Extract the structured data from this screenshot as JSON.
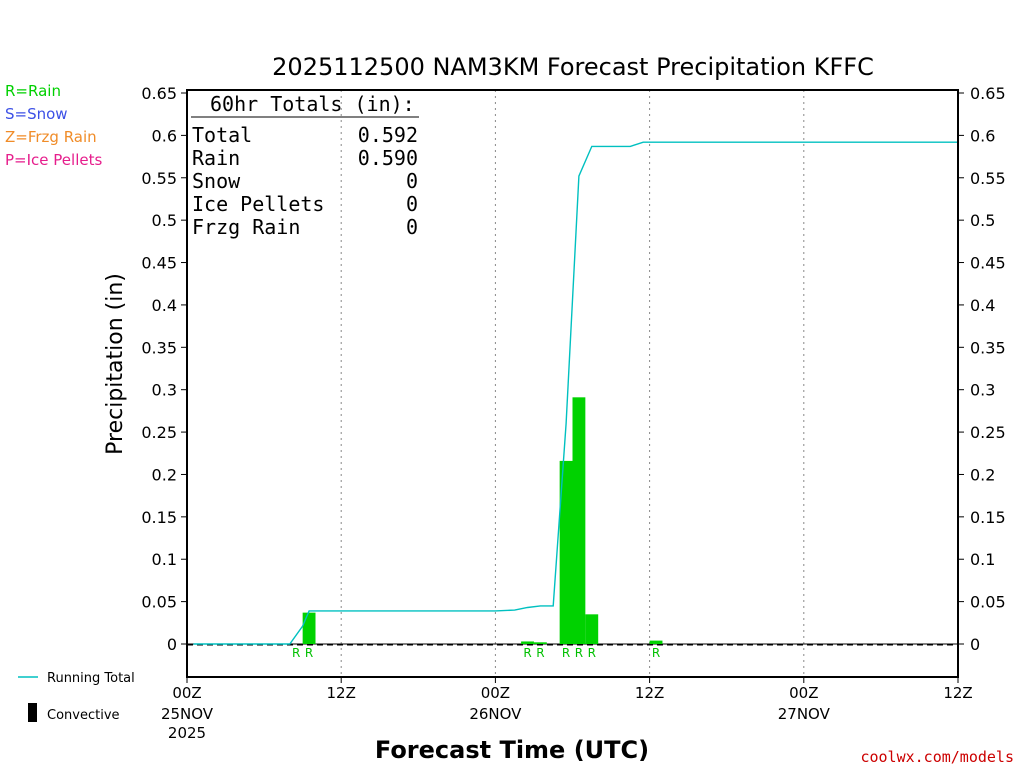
{
  "chart_data": {
    "type": "bar",
    "title": "2025112500 NAM3KM Forecast Precipitation KFFC",
    "ylabel": "Precipitation (in)",
    "xlabel": "Forecast Time (UTC)",
    "ylim": [
      -0.04,
      0.65
    ],
    "yticks": [
      "0.65",
      "0.6",
      "0.55",
      "0.5",
      "0.45",
      "0.4",
      "0.35",
      "0.3",
      "0.25",
      "0.2",
      "0.15",
      "0.1",
      "0.05",
      "0"
    ],
    "xlim_hours": [
      0,
      60
    ],
    "xticks": [
      {
        "hour": 0,
        "label": "00Z",
        "date": "25NOV",
        "year": "2025"
      },
      {
        "hour": 12,
        "label": "12Z",
        "date": "",
        "year": ""
      },
      {
        "hour": 24,
        "label": "00Z",
        "date": "26NOV",
        "year": ""
      },
      {
        "hour": 36,
        "label": "12Z",
        "date": "",
        "year": ""
      },
      {
        "hour": 48,
        "label": "00Z",
        "date": "27NOV",
        "year": ""
      },
      {
        "hour": 60,
        "label": "12Z",
        "date": "",
        "year": ""
      }
    ],
    "grid": "vertical dotted",
    "hourly_precip": [
      {
        "hour": 8.5,
        "value": 0.0,
        "type": "R"
      },
      {
        "hour": 9.5,
        "value": 0.037,
        "type": "R"
      },
      {
        "hour": 26.5,
        "value": 0.003,
        "type": "R"
      },
      {
        "hour": 27.5,
        "value": 0.002,
        "type": "R"
      },
      {
        "hour": 29.5,
        "value": 0.216,
        "type": "R"
      },
      {
        "hour": 30.5,
        "value": 0.291,
        "type": "R"
      },
      {
        "hour": 31.5,
        "value": 0.035,
        "type": "R"
      },
      {
        "hour": 36.5,
        "value": 0.004,
        "type": "R"
      }
    ],
    "running_total": {
      "name": "Running Total",
      "color": "#00c0c0",
      "points": [
        [
          0.5,
          0.0
        ],
        [
          7,
          0.0
        ],
        [
          8,
          0.0
        ],
        [
          9,
          0.021
        ],
        [
          9.5,
          0.039
        ],
        [
          10,
          0.039
        ],
        [
          24,
          0.039
        ],
        [
          25.5,
          0.04
        ],
        [
          26.5,
          0.043
        ],
        [
          27.5,
          0.045
        ],
        [
          28.5,
          0.045
        ],
        [
          29.5,
          0.26
        ],
        [
          30.5,
          0.552
        ],
        [
          31.5,
          0.587
        ],
        [
          34.5,
          0.587
        ],
        [
          35.5,
          0.592
        ],
        [
          37.5,
          0.592
        ],
        [
          60,
          0.592
        ]
      ]
    },
    "totals_box": {
      "heading": "60hr Totals (in):",
      "rows": [
        {
          "label": "Total",
          "value": "0.592"
        },
        {
          "label": "Rain",
          "value": "0.590"
        },
        {
          "label": "Snow",
          "value": "0"
        },
        {
          "label": "Ice Pellets",
          "value": "0"
        },
        {
          "label": "Frzg Rain",
          "value": "0"
        }
      ]
    },
    "type_legend": [
      {
        "text": "R=Rain",
        "color": "#00d000"
      },
      {
        "text": "S=Snow",
        "color": "#3c50e6"
      },
      {
        "text": "Z=Frzg Rain",
        "color": "#f08c28"
      },
      {
        "text": "P=Ice Pellets",
        "color": "#e61e8c"
      }
    ],
    "bottom_legend": [
      {
        "text": "Running Total",
        "kind": "line",
        "color": "#00c0c0"
      },
      {
        "text": "Convective",
        "kind": "bar",
        "color": "#000000"
      }
    ],
    "bar_color": "#00d200",
    "rain_mark_color": "#00c000"
  },
  "credit": "coolwx.com/models"
}
